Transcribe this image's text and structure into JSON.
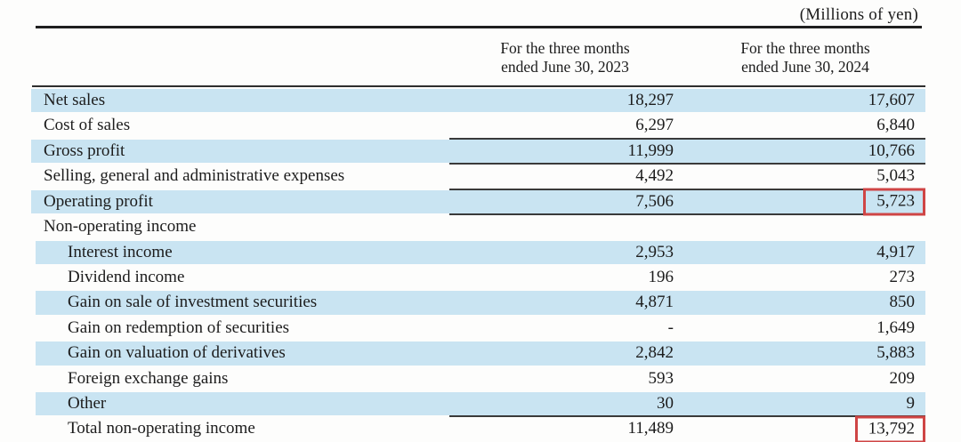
{
  "note": "(Millions of yen)",
  "columns": [
    {
      "line1": "For the three months",
      "line2": "ended June 30, 2023"
    },
    {
      "line1": "For the three months",
      "line2": "ended June 30, 2024"
    }
  ],
  "colors": {
    "row_shade": "#c9e4f2",
    "highlight_border": "#cf4545",
    "rule_dark": "#1f1f1f",
    "text": "#1c1c1c"
  },
  "table": {
    "rows": [
      {
        "label": "Net sales",
        "indent": 0,
        "v2023": "18,297",
        "v2024": "17,607",
        "shaded": true,
        "line_top": false,
        "line_bottom": false,
        "highlight_v2024": false
      },
      {
        "label": "Cost of sales",
        "indent": 0,
        "v2023": "6,297",
        "v2024": "6,840",
        "shaded": false,
        "line_top": false,
        "line_bottom": false,
        "highlight_v2024": false
      },
      {
        "label": "Gross profit",
        "indent": 0,
        "v2023": "11,999",
        "v2024": "10,766",
        "shaded": true,
        "line_top": true,
        "line_bottom": true,
        "highlight_v2024": false
      },
      {
        "label": "Selling, general and administrative expenses",
        "indent": 0,
        "v2023": "4,492",
        "v2024": "5,043",
        "shaded": false,
        "line_top": false,
        "line_bottom": false,
        "highlight_v2024": false
      },
      {
        "label": "Operating profit",
        "indent": 0,
        "v2023": "7,506",
        "v2024": "5,723",
        "shaded": true,
        "line_top": true,
        "line_bottom": true,
        "highlight_v2024": true
      },
      {
        "label": "Non-operating income",
        "indent": 0,
        "v2023": "",
        "v2024": "",
        "shaded": false,
        "line_top": false,
        "line_bottom": false,
        "highlight_v2024": false
      },
      {
        "label": "Interest income",
        "indent": 1,
        "v2023": "2,953",
        "v2024": "4,917",
        "shaded": true,
        "line_top": false,
        "line_bottom": false,
        "highlight_v2024": false
      },
      {
        "label": "Dividend income",
        "indent": 1,
        "v2023": "196",
        "v2024": "273",
        "shaded": false,
        "line_top": false,
        "line_bottom": false,
        "highlight_v2024": false
      },
      {
        "label": "Gain on sale of investment securities",
        "indent": 1,
        "v2023": "4,871",
        "v2024": "850",
        "shaded": true,
        "line_top": false,
        "line_bottom": false,
        "highlight_v2024": false
      },
      {
        "label": "Gain on redemption of securities",
        "indent": 1,
        "v2023": "-",
        "v2024": "1,649",
        "shaded": false,
        "line_top": false,
        "line_bottom": false,
        "highlight_v2024": false
      },
      {
        "label": "Gain on valuation of derivatives",
        "indent": 1,
        "v2023": "2,842",
        "v2024": "5,883",
        "shaded": true,
        "line_top": false,
        "line_bottom": false,
        "highlight_v2024": false
      },
      {
        "label": "Foreign exchange gains",
        "indent": 1,
        "v2023": "593",
        "v2024": "209",
        "shaded": false,
        "line_top": false,
        "line_bottom": false,
        "highlight_v2024": false
      },
      {
        "label": "Other",
        "indent": 1,
        "v2023": "30",
        "v2024": "9",
        "shaded": true,
        "line_top": false,
        "line_bottom": false,
        "highlight_v2024": false
      },
      {
        "label": "Total non-operating income",
        "indent": 1,
        "v2023": "11,489",
        "v2024": "13,792",
        "shaded": false,
        "line_top": true,
        "line_bottom": false,
        "highlight_v2024": true
      }
    ]
  }
}
